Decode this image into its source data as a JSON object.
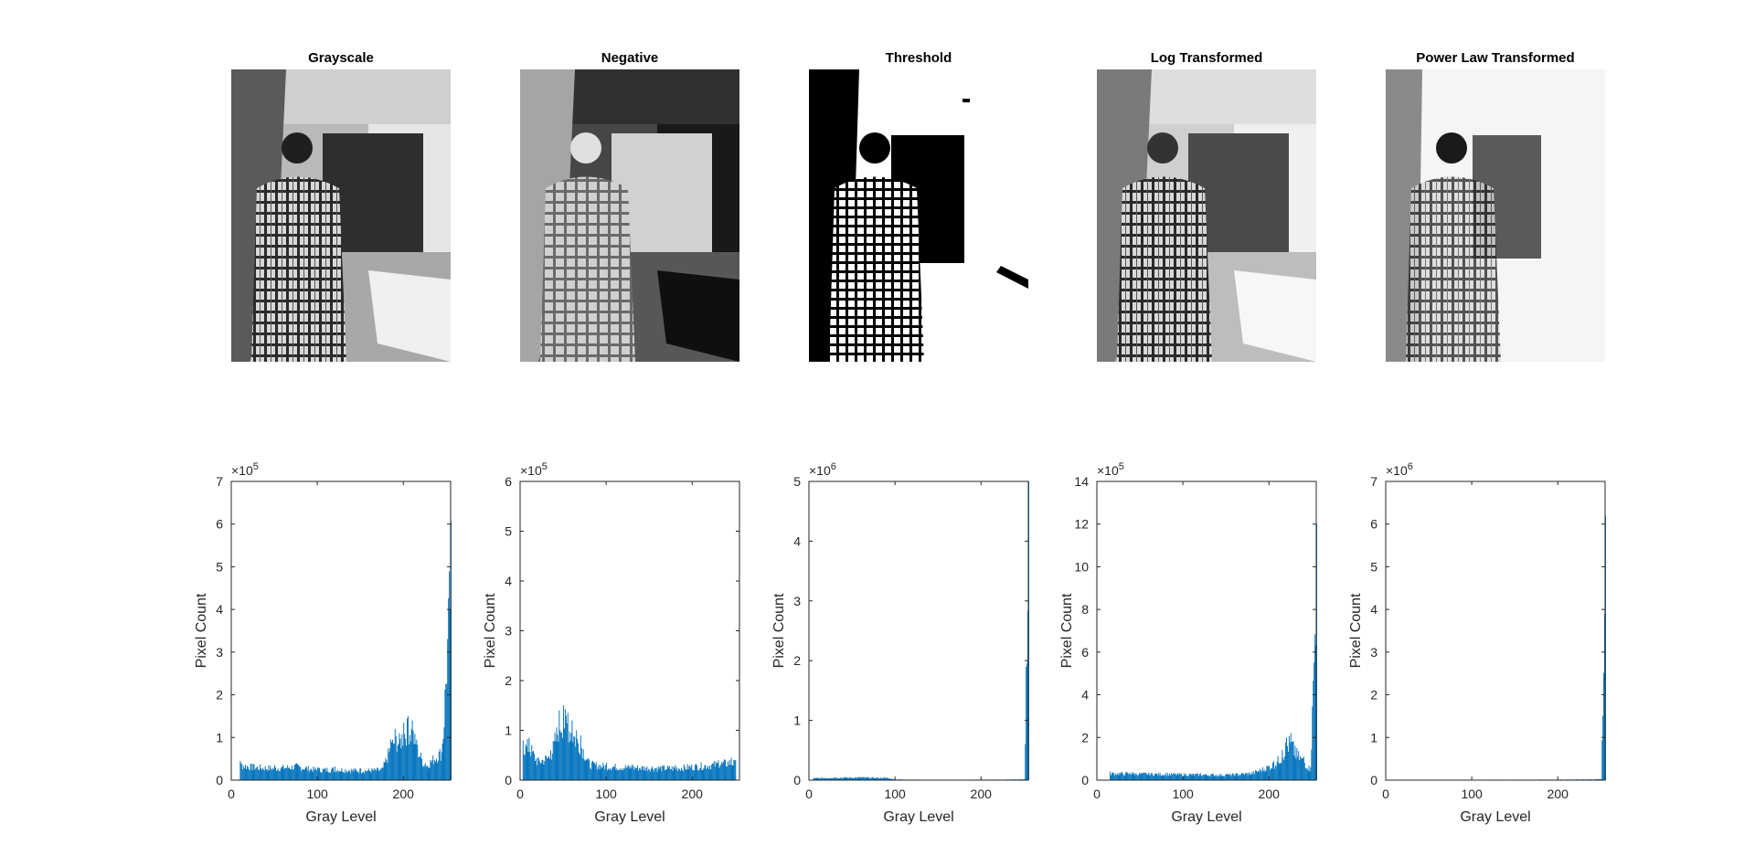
{
  "figure": {
    "panels": [
      {
        "title": "Grayscale",
        "photo": "grayscale-photo"
      },
      {
        "title": "Negative",
        "photo": "negative-photo"
      },
      {
        "title": "Threshold",
        "photo": "threshold-photo"
      },
      {
        "title": "Log Transformed",
        "photo": "log-photo"
      },
      {
        "title": "Power Law Transformed",
        "photo": "power-law-photo"
      }
    ]
  },
  "colors": {
    "bars": "#0072BD",
    "axes": "#262626",
    "background": "#ffffff"
  },
  "chart_data": [
    {
      "type": "bar",
      "title": "",
      "xlabel": "Gray Level",
      "ylabel": "Pixel Count",
      "xlim": [
        0,
        255
      ],
      "ylim": [
        0,
        700000
      ],
      "exponent_label": "5",
      "xticks": [
        0,
        100,
        200
      ],
      "yticks": [
        0,
        1,
        2,
        3,
        4,
        5,
        6,
        7
      ],
      "peaks": [
        [
          10,
          45000
        ],
        [
          25,
          38000
        ],
        [
          50,
          35000
        ],
        [
          75,
          40000
        ],
        [
          100,
          30000
        ],
        [
          120,
          32000
        ],
        [
          150,
          28000
        ],
        [
          175,
          30000
        ],
        [
          185,
          95000
        ],
        [
          190,
          120000
        ],
        [
          195,
          110000
        ],
        [
          200,
          135000
        ],
        [
          205,
          150000
        ],
        [
          210,
          140000
        ],
        [
          215,
          95000
        ],
        [
          225,
          40000
        ],
        [
          245,
          85000
        ],
        [
          255,
          605000
        ]
      ]
    },
    {
      "type": "bar",
      "title": "",
      "xlabel": "Gray Level",
      "ylabel": "Pixel Count",
      "xlim": [
        0,
        255
      ],
      "ylim": [
        0,
        600000
      ],
      "exponent_label": "5",
      "xticks": [
        0,
        100,
        200
      ],
      "yticks": [
        0,
        1,
        2,
        3,
        4,
        5,
        6
      ],
      "peaks": [
        [
          3,
          80000
        ],
        [
          10,
          85000
        ],
        [
          20,
          45000
        ],
        [
          35,
          60000
        ],
        [
          40,
          95000
        ],
        [
          45,
          140000
        ],
        [
          50,
          150000
        ],
        [
          55,
          135000
        ],
        [
          60,
          120000
        ],
        [
          65,
          100000
        ],
        [
          70,
          90000
        ],
        [
          80,
          40000
        ],
        [
          100,
          35000
        ],
        [
          130,
          32000
        ],
        [
          180,
          30000
        ],
        [
          230,
          40000
        ],
        [
          245,
          45000
        ],
        [
          250,
          40000
        ]
      ]
    },
    {
      "type": "bar",
      "title": "",
      "xlabel": "Gray Level",
      "ylabel": "Pixel Count",
      "xlim": [
        0,
        255
      ],
      "ylim": [
        0,
        5000000
      ],
      "exponent_label": "6",
      "xticks": [
        0,
        100,
        200
      ],
      "yticks": [
        0,
        1,
        2,
        3,
        4,
        5
      ],
      "peaks": [
        [
          5,
          40000
        ],
        [
          30,
          50000
        ],
        [
          60,
          55000
        ],
        [
          90,
          45000
        ],
        [
          100,
          15000
        ],
        [
          150,
          5000
        ],
        [
          200,
          10000
        ],
        [
          250,
          15000
        ],
        [
          255,
          5000000
        ]
      ]
    },
    {
      "type": "bar",
      "title": "",
      "xlabel": "Gray Level",
      "ylabel": "Pixel Count",
      "xlim": [
        0,
        255
      ],
      "ylim": [
        0,
        1400000
      ],
      "exponent_label": "5",
      "xticks": [
        0,
        100,
        200
      ],
      "yticks": [
        0,
        2,
        4,
        6,
        8,
        10,
        12,
        14
      ],
      "peaks": [
        [
          15,
          40000
        ],
        [
          40,
          38000
        ],
        [
          80,
          35000
        ],
        [
          120,
          32000
        ],
        [
          150,
          30000
        ],
        [
          180,
          40000
        ],
        [
          205,
          90000
        ],
        [
          215,
          140000
        ],
        [
          220,
          200000
        ],
        [
          225,
          220000
        ],
        [
          230,
          160000
        ],
        [
          240,
          110000
        ],
        [
          248,
          60000
        ],
        [
          255,
          1200000
        ]
      ]
    },
    {
      "type": "bar",
      "title": "",
      "xlabel": "Gray Level",
      "ylabel": "Pixel Count",
      "xlim": [
        0,
        255
      ],
      "ylim": [
        0,
        7000000
      ],
      "exponent_label": "6",
      "xticks": [
        0,
        100,
        200
      ],
      "yticks": [
        0,
        1,
        2,
        3,
        4,
        5,
        6,
        7
      ],
      "peaks": [
        [
          5,
          10000
        ],
        [
          60,
          10000
        ],
        [
          120,
          12000
        ],
        [
          180,
          15000
        ],
        [
          230,
          20000
        ],
        [
          250,
          25000
        ],
        [
          255,
          6200000
        ]
      ]
    }
  ]
}
